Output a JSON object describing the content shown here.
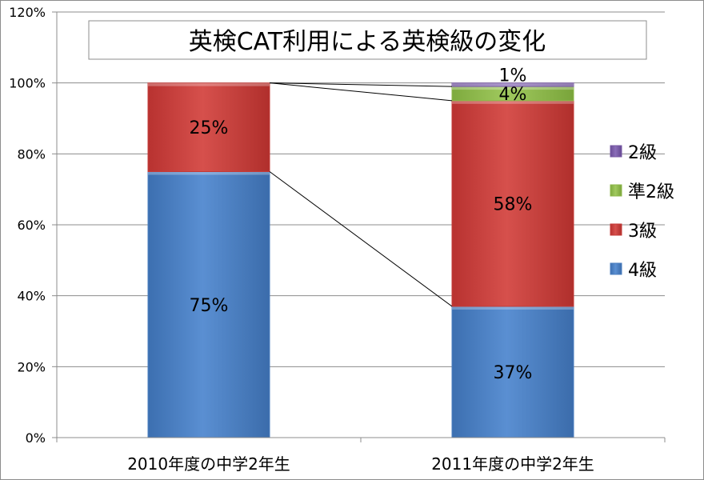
{
  "chart_data": {
    "type": "bar",
    "stacked": true,
    "title": "英検CAT利用による英検級の変化",
    "categories": [
      "2010年度の中学2年生",
      "2011年度の中学2年生"
    ],
    "ylim": [
      0,
      1.2
    ],
    "yticks": [
      "0%",
      "20%",
      "40%",
      "60%",
      "80%",
      "100%",
      "120%"
    ],
    "grid": true,
    "legend_position": "right",
    "series": [
      {
        "name": "4級",
        "values": [
          0.75,
          0.37
        ],
        "labels": [
          "75%",
          "37%"
        ],
        "color": "#4a7ebf"
      },
      {
        "name": "3級",
        "values": [
          0.25,
          0.58
        ],
        "labels": [
          "25%",
          "58%"
        ],
        "color": "#c43a37"
      },
      {
        "name": "準2級",
        "values": [
          0,
          0.04
        ],
        "labels": [
          "",
          "4%"
        ],
        "color": "#8db74a"
      },
      {
        "name": "2級",
        "values": [
          0,
          0.01
        ],
        "labels": [
          "",
          "1%"
        ],
        "color": "#7759a3"
      }
    ],
    "legend_order": [
      "2級",
      "準2級",
      "3級",
      "4級"
    ],
    "connector_lines": true
  }
}
